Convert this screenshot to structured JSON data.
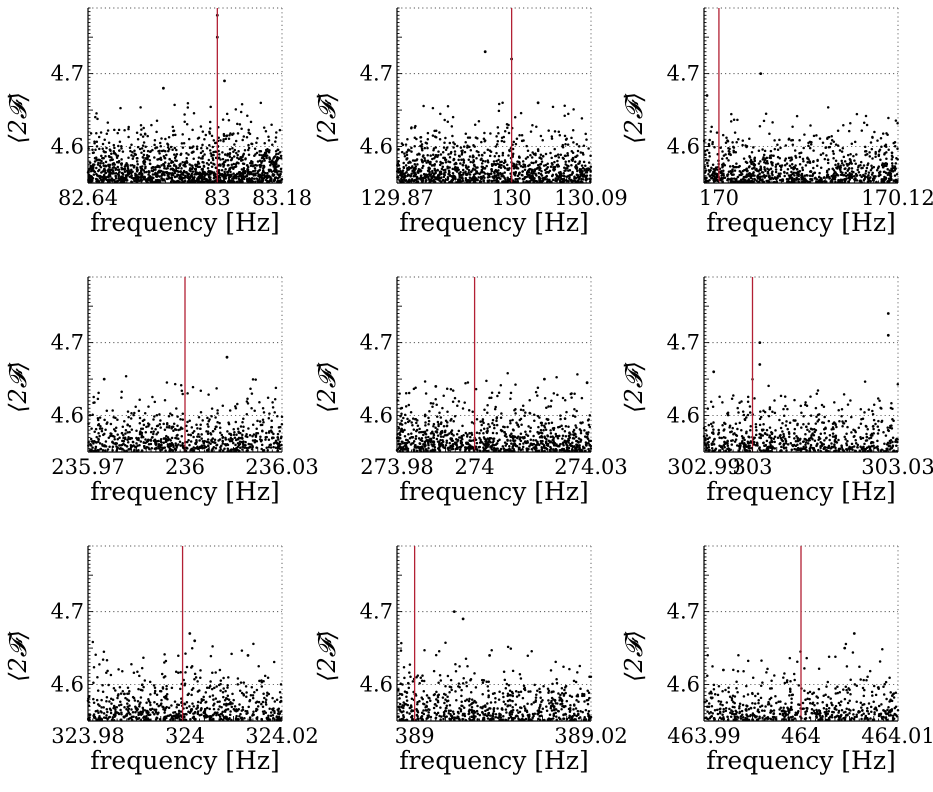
{
  "figure": {
    "x_axis_label": "frequency [Hz]",
    "y_axis_label": "⟨2𝓕⟩",
    "y_tick_labels": [
      "4.6",
      "4.7"
    ],
    "colors": {
      "points": "#000000",
      "marker_line": "#b22034",
      "grid": "#555555"
    }
  },
  "chart_data": [
    {
      "type": "scatter",
      "xlabel": "frequency [Hz]",
      "ylabel": "⟨2𝓕⟩",
      "xlim": [
        82.64,
        83.18
      ],
      "ylim": [
        4.55,
        4.79
      ],
      "yticks": [
        4.6,
        4.7
      ],
      "xticks": [
        82.64,
        83,
        83.18
      ],
      "xtick_labels": [
        "82.64",
        "83",
        "83.18"
      ],
      "marker_x": 83.0,
      "n_points": 1400,
      "notable_points": [
        {
          "x": 83.0,
          "y": 4.78
        },
        {
          "x": 83.0,
          "y": 4.75
        },
        {
          "x": 82.85,
          "y": 4.68
        },
        {
          "x": 83.02,
          "y": 4.69
        }
      ],
      "grid": true
    },
    {
      "type": "scatter",
      "xlabel": "frequency [Hz]",
      "ylabel": "⟨2𝓕⟩",
      "xlim": [
        129.87,
        130.09
      ],
      "ylim": [
        4.55,
        4.79
      ],
      "yticks": [
        4.6,
        4.7
      ],
      "xticks": [
        129.87,
        130,
        130.09
      ],
      "xtick_labels": [
        "129.87",
        "130",
        "130.09"
      ],
      "marker_x": 130.0,
      "n_points": 1100,
      "notable_points": [
        {
          "x": 129.97,
          "y": 4.73
        },
        {
          "x": 130.0,
          "y": 4.72
        },
        {
          "x": 130.03,
          "y": 4.66
        }
      ],
      "grid": true
    },
    {
      "type": "scatter",
      "xlabel": "frequency [Hz]",
      "ylabel": "⟨2𝓕⟩",
      "xlim": [
        169.99,
        170.12
      ],
      "ylim": [
        4.55,
        4.79
      ],
      "yticks": [
        4.6,
        4.7
      ],
      "xticks": [
        170,
        170.12
      ],
      "xtick_labels": [
        "170",
        "170.12"
      ],
      "marker_x": 170.0,
      "n_points": 900,
      "notable_points": [
        {
          "x": 170.028,
          "y": 4.7
        },
        {
          "x": 169.992,
          "y": 4.67
        }
      ],
      "grid": true
    },
    {
      "type": "scatter",
      "xlabel": "frequency [Hz]",
      "ylabel": "⟨2𝓕⟩",
      "xlim": [
        235.97,
        236.03
      ],
      "ylim": [
        4.55,
        4.79
      ],
      "yticks": [
        4.6,
        4.7
      ],
      "xticks": [
        235.97,
        236,
        236.03
      ],
      "xtick_labels": [
        "235.97",
        "236",
        "236.03"
      ],
      "marker_x": 236.0,
      "n_points": 700,
      "notable_points": [
        {
          "x": 236.013,
          "y": 4.68
        },
        {
          "x": 235.975,
          "y": 4.65
        }
      ],
      "grid": true
    },
    {
      "type": "scatter",
      "xlabel": "frequency [Hz]",
      "ylabel": "⟨2𝓕⟩",
      "xlim": [
        273.98,
        274.03
      ],
      "ylim": [
        4.55,
        4.79
      ],
      "yticks": [
        4.6,
        4.7
      ],
      "xticks": [
        273.98,
        274,
        274.03
      ],
      "xtick_labels": [
        "273.98",
        "274",
        "274.03"
      ],
      "marker_x": 274.0,
      "n_points": 900,
      "notable_points": [
        {
          "x": 274.018,
          "y": 4.65
        },
        {
          "x": 274.029,
          "y": 4.645
        },
        {
          "x": 273.99,
          "y": 4.64
        }
      ],
      "grid": true
    },
    {
      "type": "scatter",
      "xlabel": "frequency [Hz]",
      "ylabel": "⟨2𝓕⟩",
      "xlim": [
        302.99,
        303.03
      ],
      "ylim": [
        4.55,
        4.79
      ],
      "yticks": [
        4.6,
        4.7
      ],
      "xticks": [
        302.99,
        303,
        303.03
      ],
      "xtick_labels": [
        "302.99",
        "303",
        "303.03"
      ],
      "marker_x": 303.0,
      "n_points": 650,
      "notable_points": [
        {
          "x": 303.0015,
          "y": 4.7
        },
        {
          "x": 303.0015,
          "y": 4.67
        },
        {
          "x": 303.028,
          "y": 4.74
        },
        {
          "x": 303.028,
          "y": 4.71
        },
        {
          "x": 302.992,
          "y": 4.66
        }
      ],
      "grid": true
    },
    {
      "type": "scatter",
      "xlabel": "frequency [Hz]",
      "ylabel": "⟨2𝓕⟩",
      "xlim": [
        323.98,
        324.02
      ],
      "ylim": [
        4.55,
        4.79
      ],
      "yticks": [
        4.6,
        4.7
      ],
      "xticks": [
        323.98,
        324,
        324.02
      ],
      "xtick_labels": [
        "323.98",
        "324",
        "324.02"
      ],
      "marker_x": 323.9995,
      "n_points": 650,
      "notable_points": [
        {
          "x": 324.001,
          "y": 4.67
        },
        {
          "x": 324.002,
          "y": 4.66
        },
        {
          "x": 324.013,
          "y": 4.64
        }
      ],
      "grid": true
    },
    {
      "type": "scatter",
      "xlabel": "frequency [Hz]",
      "ylabel": "⟨2𝓕⟩",
      "xlim": [
        388.998,
        389.02
      ],
      "ylim": [
        4.55,
        4.79
      ],
      "yticks": [
        4.6,
        4.7
      ],
      "xticks": [
        389,
        389.02
      ],
      "xtick_labels": [
        "389",
        "389.02"
      ],
      "marker_x": 389.0,
      "n_points": 650,
      "notable_points": [
        {
          "x": 389.0045,
          "y": 4.7
        },
        {
          "x": 389.0055,
          "y": 4.69
        },
        {
          "x": 389.0085,
          "y": 4.64
        }
      ],
      "grid": true
    },
    {
      "type": "scatter",
      "xlabel": "frequency [Hz]",
      "ylabel": "⟨2𝓕⟩",
      "xlim": [
        463.99,
        464.01
      ],
      "ylim": [
        4.55,
        4.79
      ],
      "yticks": [
        4.6,
        4.7
      ],
      "xticks": [
        463.99,
        464,
        464.01
      ],
      "xtick_labels": [
        "463.99",
        "464",
        "464.01"
      ],
      "marker_x": 464.0,
      "n_points": 550,
      "notable_points": [
        {
          "x": 464.0055,
          "y": 4.67
        },
        {
          "x": 464.0045,
          "y": 4.65
        },
        {
          "x": 463.992,
          "y": 4.62
        }
      ],
      "grid": true
    }
  ]
}
